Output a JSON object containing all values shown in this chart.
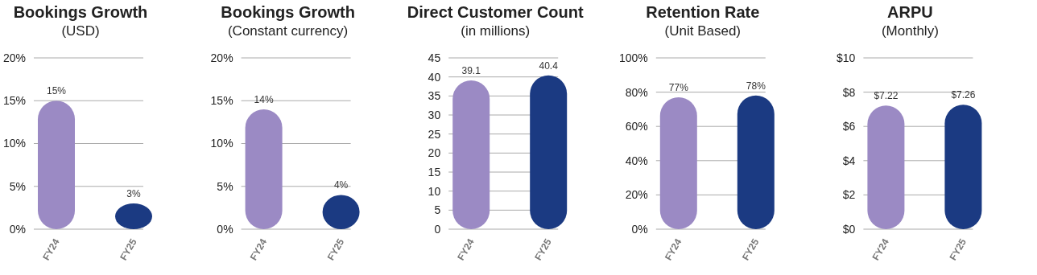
{
  "chart_data": [
    {
      "type": "bar",
      "title": "Bookings Growth",
      "subtitle": "(USD)",
      "categories": [
        "FY24",
        "FY25"
      ],
      "values": [
        15,
        3
      ],
      "colors": [
        "#9b8ac4",
        "#1b3a82"
      ],
      "value_labels": [
        "15%",
        "3%"
      ],
      "ylim": [
        0,
        20
      ],
      "yticks": [
        {
          "value": 0,
          "label": "0%"
        },
        {
          "value": 5,
          "label": "5%"
        },
        {
          "value": 10,
          "label": "10%"
        },
        {
          "value": 15,
          "label": "15%"
        },
        {
          "value": 20,
          "label": "20%"
        }
      ],
      "grid": "y"
    },
    {
      "type": "bar",
      "title": "Bookings Growth",
      "subtitle": "(Constant currency)",
      "categories": [
        "FY24",
        "FY25"
      ],
      "values": [
        14,
        4
      ],
      "colors": [
        "#9b8ac4",
        "#1b3a82"
      ],
      "value_labels": [
        "14%",
        "4%"
      ],
      "ylim": [
        0,
        20
      ],
      "yticks": [
        {
          "value": 0,
          "label": "0%"
        },
        {
          "value": 5,
          "label": "5%"
        },
        {
          "value": 10,
          "label": "10%"
        },
        {
          "value": 15,
          "label": "15%"
        },
        {
          "value": 20,
          "label": "20%"
        }
      ],
      "grid": "y"
    },
    {
      "type": "bar",
      "title": "Direct Customer Count",
      "subtitle": "(in millions)",
      "categories": [
        "FY24",
        "FY25"
      ],
      "values": [
        39.1,
        40.4
      ],
      "colors": [
        "#9b8ac4",
        "#1b3a82"
      ],
      "data_labels": true,
      "ylim": [
        0,
        45
      ],
      "yticks": [
        0,
        5,
        10,
        15,
        20,
        25,
        30,
        35,
        40,
        45
      ],
      "grid": "y"
    },
    {
      "type": "bar",
      "title": "Retention Rate",
      "subtitle": "(Unit Based)",
      "categories": [
        "FY24",
        "FY25"
      ],
      "values": [
        77,
        78
      ],
      "colors": [
        "#9b8ac4",
        "#1b3a82"
      ],
      "value_labels": [
        "77%",
        "78%"
      ],
      "ylim": [
        0,
        100
      ],
      "yticks": [
        {
          "value": 0,
          "label": "0%"
        },
        {
          "value": 20,
          "label": "20%"
        },
        {
          "value": 40,
          "label": "40%"
        },
        {
          "value": 60,
          "label": "60%"
        },
        {
          "value": 80,
          "label": "80%"
        },
        {
          "value": 100,
          "label": "100%"
        }
      ],
      "grid": "y"
    },
    {
      "type": "bar",
      "title": "ARPU",
      "subtitle": "(Monthly)",
      "categories": [
        "FY24",
        "FY25"
      ],
      "values": [
        7.22,
        7.26
      ],
      "colors": [
        "#9b8ac4",
        "#1b3a82"
      ],
      "value_labels": [
        "$7.22",
        "$7.26"
      ],
      "ylim": [
        0,
        10
      ],
      "yticks": [
        {
          "value": 0,
          "label": "$0"
        },
        {
          "value": 2,
          "label": "$2"
        },
        {
          "value": 4,
          "label": "$4"
        },
        {
          "value": 6,
          "label": "$6"
        },
        {
          "value": 8,
          "label": "$8"
        },
        {
          "value": 10,
          "label": "$10"
        }
      ],
      "grid": "y"
    }
  ]
}
